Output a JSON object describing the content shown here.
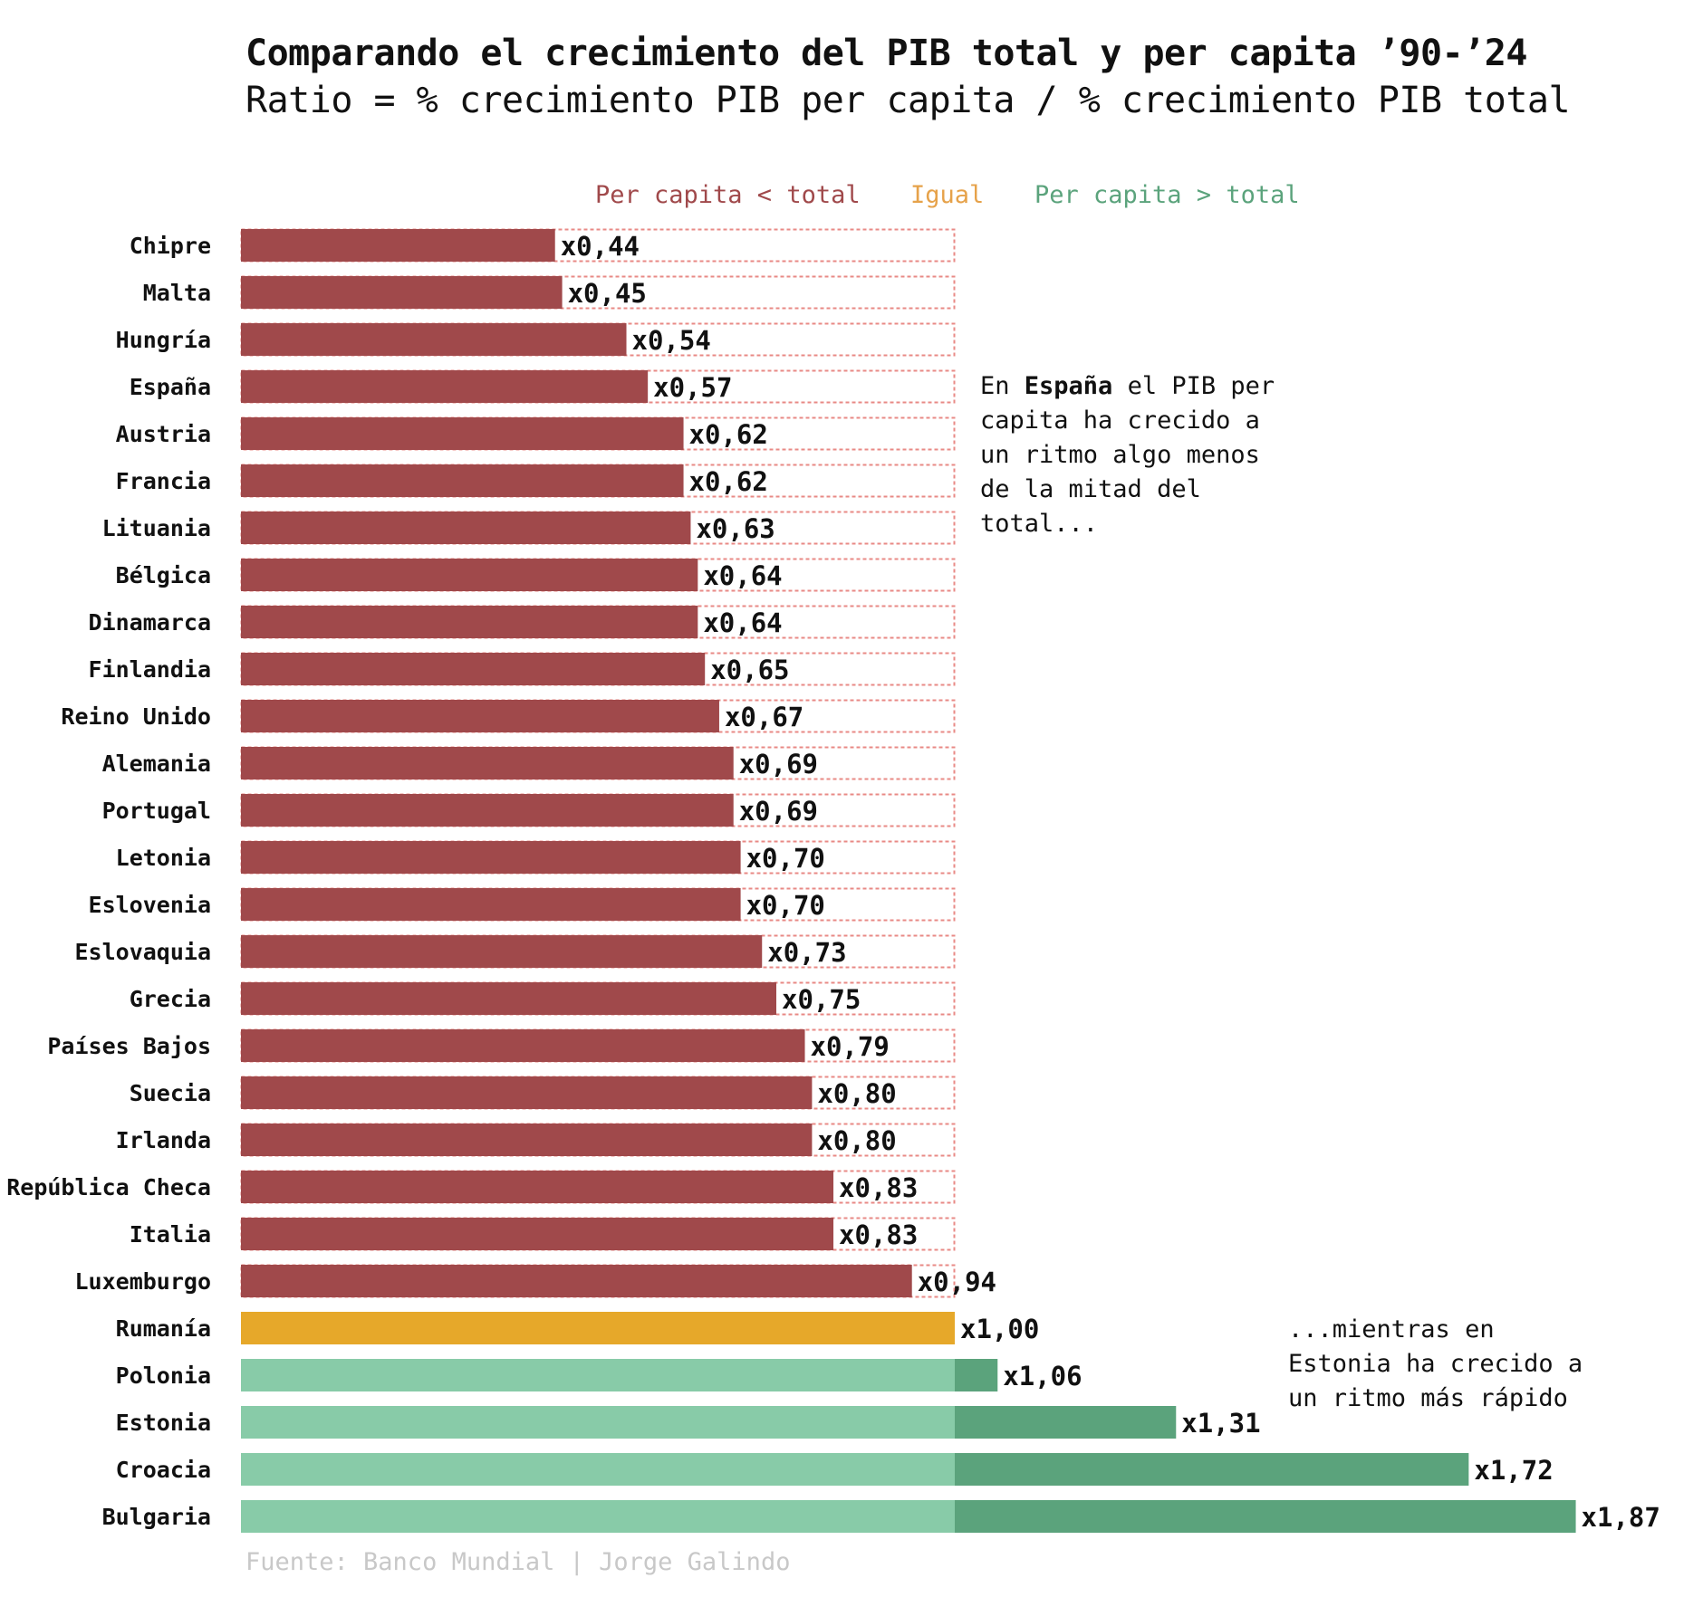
{
  "title": "Comparando el crecimiento del PIB total y per capita ’90-’24",
  "subtitle": "Ratio = % crecimiento PIB per capita / % crecimiento PIB total",
  "legend": {
    "below": "Per capita < total",
    "equal": "Igual",
    "above": "Per capita > total"
  },
  "colors": {
    "below": "#a0494b",
    "equal": "#e6a82a",
    "above_base": "#88cba8",
    "above_extra": "#5ba37c",
    "reference_outline": "#e88a86",
    "legend_below": "#a0494b",
    "legend_equal": "#e6a24a",
    "legend_above": "#5ba37c"
  },
  "annotations": {
    "spain_pre": "En ",
    "spain_bold": "España",
    "spain_post": " el PIB per\ncapita ha crecido a\nun ritmo algo menos\nde la mitad del\ntotal...",
    "estonia": "...mientras en\nEstonia ha crecido a\nun ritmo más rápido"
  },
  "source": "Fuente: Banco Mundial | Jorge Galindo",
  "chart_data": {
    "type": "bar",
    "orientation": "horizontal",
    "title": "Comparando el crecimiento del PIB total y per capita ’90-’24",
    "subtitle": "Ratio = % crecimiento PIB per capita / % crecimiento PIB total",
    "xlim": [
      0,
      1.87
    ],
    "reference_value": 1.0,
    "grid": false,
    "categories": [
      "Chipre",
      "Malta",
      "Hungría",
      "España",
      "Austria",
      "Francia",
      "Lituania",
      "Bélgica",
      "Dinamarca",
      "Finlandia",
      "Reino Unido",
      "Alemania",
      "Portugal",
      "Letonia",
      "Eslovenia",
      "Eslovaquia",
      "Grecia",
      "Países Bajos",
      "Suecia",
      "Irlanda",
      "República Checa",
      "Italia",
      "Luxemburgo",
      "Rumanía",
      "Polonia",
      "Estonia",
      "Croacia",
      "Bulgaria"
    ],
    "values": [
      0.44,
      0.45,
      0.54,
      0.57,
      0.62,
      0.62,
      0.63,
      0.64,
      0.64,
      0.65,
      0.67,
      0.69,
      0.69,
      0.7,
      0.7,
      0.73,
      0.75,
      0.79,
      0.8,
      0.8,
      0.83,
      0.83,
      0.94,
      1.0,
      1.06,
      1.31,
      1.72,
      1.87
    ],
    "value_labels": [
      "x0,44",
      "x0,45",
      "x0,54",
      "x0,57",
      "x0,62",
      "x0,62",
      "x0,63",
      "x0,64",
      "x0,64",
      "x0,65",
      "x0,67",
      "x0,69",
      "x0,69",
      "x0,70",
      "x0,70",
      "x0,73",
      "x0,75",
      "x0,79",
      "x0,80",
      "x0,80",
      "x0,83",
      "x0,83",
      "x0,94",
      "x1,00",
      "x1,06",
      "x1,31",
      "x1,72",
      "x1,87"
    ],
    "series_legend": [
      "Per capita < total",
      "Igual",
      "Per capita > total"
    ]
  }
}
